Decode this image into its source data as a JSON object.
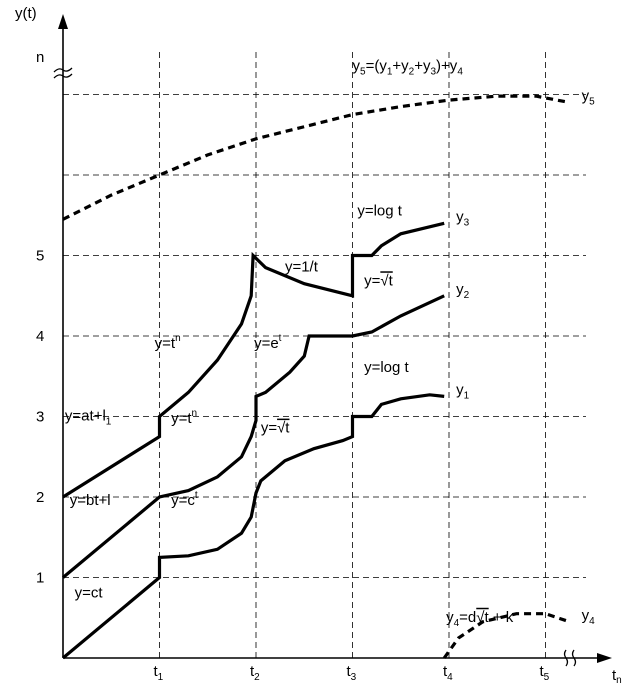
{
  "chart_data": {
    "type": "line",
    "axis_labels": {
      "y": "y(t)",
      "x_end": "t",
      "x_end_sub": "n",
      "y_break": "n"
    },
    "x_ticks": [
      {
        "base": "t",
        "sub": "1",
        "x": 1
      },
      {
        "base": "t",
        "sub": "2",
        "x": 2
      },
      {
        "base": "t",
        "sub": "3",
        "x": 3
      },
      {
        "base": "t",
        "sub": "4",
        "x": 4
      },
      {
        "base": "t",
        "sub": "5",
        "x": 5
      }
    ],
    "y_ticks": [
      "1",
      "2",
      "3",
      "4",
      "5"
    ],
    "series": [
      {
        "name": "y1",
        "label_base": "y",
        "label_sub": "1",
        "points": [
          [
            0,
            0
          ],
          [
            1,
            1
          ],
          [
            1,
            1.25
          ],
          [
            1.3,
            1.27
          ],
          [
            1.6,
            1.35
          ],
          [
            1.85,
            1.55
          ],
          [
            1.95,
            1.75
          ],
          [
            2,
            2.05
          ],
          [
            2.05,
            2.2
          ],
          [
            2.3,
            2.45
          ],
          [
            2.6,
            2.6
          ],
          [
            2.9,
            2.7
          ],
          [
            3,
            2.75
          ],
          [
            3,
            3.0
          ],
          [
            3.2,
            3.0
          ],
          [
            3.3,
            3.15
          ],
          [
            3.5,
            3.22
          ],
          [
            3.8,
            3.27
          ],
          [
            3.95,
            3.25
          ]
        ]
      },
      {
        "name": "y2",
        "label_base": "y",
        "label_sub": "2",
        "points": [
          [
            0,
            1
          ],
          [
            1,
            2
          ],
          [
            1.3,
            2.08
          ],
          [
            1.6,
            2.25
          ],
          [
            1.85,
            2.5
          ],
          [
            1.95,
            2.75
          ],
          [
            2,
            2.95
          ],
          [
            2,
            3.25
          ],
          [
            2.1,
            3.3
          ],
          [
            2.35,
            3.55
          ],
          [
            2.5,
            3.75
          ],
          [
            2.55,
            4.0
          ],
          [
            3,
            4.0
          ],
          [
            3.2,
            4.05
          ],
          [
            3.5,
            4.25
          ],
          [
            3.95,
            4.5
          ]
        ]
      },
      {
        "name": "y3",
        "label_base": "y",
        "label_sub": "3",
        "points": [
          [
            0,
            2
          ],
          [
            1,
            2.75
          ],
          [
            1,
            3.0
          ],
          [
            1.3,
            3.3
          ],
          [
            1.6,
            3.7
          ],
          [
            1.85,
            4.15
          ],
          [
            1.95,
            4.5
          ],
          [
            1.97,
            5.0
          ],
          [
            2.1,
            4.85
          ],
          [
            2.5,
            4.65
          ],
          [
            3,
            4.5
          ],
          [
            3,
            5.0
          ],
          [
            3.2,
            5.0
          ],
          [
            3.3,
            5.12
          ],
          [
            3.5,
            5.27
          ],
          [
            3.95,
            5.4
          ]
        ]
      },
      {
        "name": "y4",
        "label_base": "y",
        "label_sub": "4",
        "dashed": true,
        "points": [
          [
            3.95,
            0
          ],
          [
            4.1,
            0.25
          ],
          [
            4.35,
            0.45
          ],
          [
            4.7,
            0.55
          ],
          [
            5,
            0.55
          ],
          [
            5.25,
            0.45
          ]
        ]
      },
      {
        "name": "y5",
        "label_base": "y",
        "label_sub": "5",
        "dashed": true,
        "points": [
          [
            0,
            5.45
          ],
          [
            0.5,
            5.75
          ],
          [
            1,
            6.0
          ],
          [
            1.5,
            6.25
          ],
          [
            2,
            6.45
          ],
          [
            2.5,
            6.6
          ],
          [
            3,
            6.75
          ],
          [
            3.5,
            6.85
          ],
          [
            4,
            6.93
          ],
          [
            4.5,
            6.98
          ],
          [
            4.9,
            6.98
          ],
          [
            5.25,
            6.9
          ]
        ]
      }
    ],
    "annotations": [
      {
        "id": "y-at-l1",
        "parts": [
          [
            "y=at+l",
            ""
          ],
          [
            "1",
            "sub"
          ]
        ],
        "x": 0.02,
        "y": 2.95
      },
      {
        "id": "y-bt-l",
        "parts": [
          [
            "y=bt+l",
            ""
          ]
        ],
        "x": 0.07,
        "y": 1.9
      },
      {
        "id": "y-ct",
        "parts": [
          [
            "y=ct",
            ""
          ]
        ],
        "x": 0.12,
        "y": 0.75
      },
      {
        "id": "y-tn-upper",
        "parts": [
          [
            "y=t",
            ""
          ],
          [
            "n",
            "sup"
          ]
        ],
        "x": 0.95,
        "y": 3.85
      },
      {
        "id": "y-tn-lower",
        "parts": [
          [
            "y=t",
            ""
          ],
          [
            "n",
            "sup"
          ]
        ],
        "x": 1.12,
        "y": 2.92
      },
      {
        "id": "y-ct-exp",
        "parts": [
          [
            "y=c",
            ""
          ],
          [
            "t",
            "sup"
          ]
        ],
        "x": 1.12,
        "y": 1.9
      },
      {
        "id": "y-1-over-t",
        "parts": [
          [
            "y=1/t",
            ""
          ]
        ],
        "x": 2.3,
        "y": 4.8
      },
      {
        "id": "y-et",
        "parts": [
          [
            "y=e",
            ""
          ],
          [
            "t",
            "sup"
          ]
        ],
        "x": 1.98,
        "y": 3.85
      },
      {
        "id": "y-sqrt-t-lower",
        "parts": [
          [
            "y=",
            ""
          ],
          [
            "√t",
            "root"
          ]
        ],
        "x": 2.05,
        "y": 2.8
      },
      {
        "id": "y-sqrt-t-upper",
        "parts": [
          [
            "y=",
            ""
          ],
          [
            "√t",
            "root"
          ]
        ],
        "x": 3.12,
        "y": 4.63
      },
      {
        "id": "y-log-t-upper",
        "parts": [
          [
            "y=log t",
            ""
          ]
        ],
        "x": 3.05,
        "y": 5.5
      },
      {
        "id": "y-log-t-lower",
        "parts": [
          [
            "y=log t",
            ""
          ]
        ],
        "x": 3.12,
        "y": 3.55
      },
      {
        "id": "y4-formula",
        "parts": [
          [
            "y",
            ""
          ],
          [
            "4",
            "sub"
          ],
          [
            "=d",
            ""
          ],
          [
            "√t",
            "root"
          ],
          [
            " + k",
            ""
          ]
        ],
        "x": 3.97,
        "y": 0.45
      },
      {
        "id": "y5-formula",
        "parts": [
          [
            "y",
            ""
          ],
          [
            "5",
            "sub"
          ],
          [
            "=(y",
            ""
          ],
          [
            "1",
            "sub"
          ],
          [
            "+y",
            ""
          ],
          [
            "2",
            "sub"
          ],
          [
            "+y",
            ""
          ],
          [
            "3",
            "sub"
          ],
          [
            ")+y",
            ""
          ],
          [
            "4",
            "sub"
          ]
        ],
        "x": 3.0,
        "y": 7.3
      }
    ]
  }
}
